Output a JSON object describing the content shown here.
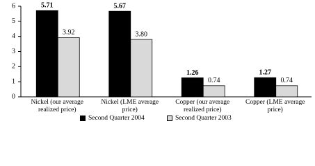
{
  "chart_data": {
    "type": "bar",
    "categories": [
      "Nickel (our average realized price)",
      "Nickel (LME average price)",
      "Copper (our average realized price)",
      "Copper (LME average price)"
    ],
    "series": [
      {
        "name": "Second Quarter 2004",
        "color": "#000000",
        "values": [
          5.71,
          5.67,
          1.26,
          1.27
        ]
      },
      {
        "name": "Second Quarter 2003",
        "color": "#d9d9d9",
        "values": [
          3.92,
          3.8,
          0.74,
          0.74
        ],
        "value_labels": [
          "3.92",
          "3.80",
          "0.74",
          "0.74"
        ]
      }
    ],
    "ylim": [
      0,
      6
    ],
    "yticks": [
      0,
      1,
      2,
      3,
      4,
      5,
      6
    ],
    "grid": false
  }
}
